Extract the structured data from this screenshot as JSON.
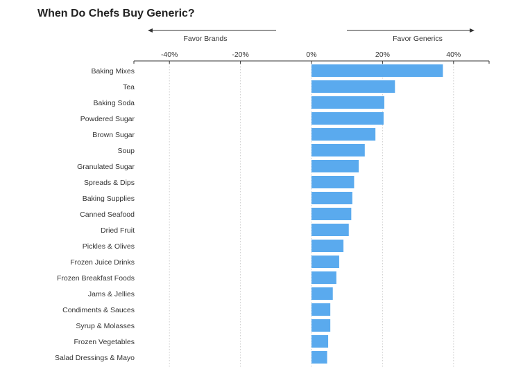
{
  "chart_data": {
    "type": "bar",
    "orientation": "horizontal",
    "title": "When Do Chefs Buy Generic?",
    "direction_labels": {
      "left": "Favor Brands",
      "right": "Favor Generics"
    },
    "xlim": [
      -50,
      50
    ],
    "x_ticks": [
      -40,
      -20,
      0,
      20,
      40
    ],
    "x_tick_labels": [
      "-40%",
      "-20%",
      "0%",
      "20%",
      "40%"
    ],
    "grid": true,
    "bar_color": "#5aaaee",
    "categories": [
      "Baking Mixes",
      "Tea",
      "Baking Soda",
      "Powdered Sugar",
      "Brown Sugar",
      "Soup",
      "Granulated Sugar",
      "Spreads & Dips",
      "Baking Supplies",
      "Canned Seafood",
      "Dried Fruit",
      "Pickles & Olives",
      "Frozen Juice Drinks",
      "Frozen Breakfast Foods",
      "Jams & Jellies",
      "Condiments & Sauces",
      "Syrup & Molasses",
      "Frozen Vegetables",
      "Salad Dressings & Mayo"
    ],
    "values": [
      37,
      23.5,
      20.5,
      20.3,
      18,
      15,
      13.3,
      12,
      11.5,
      11.2,
      10.5,
      9,
      7.8,
      7,
      6,
      5.3,
      5.3,
      4.7,
      4.4
    ]
  }
}
